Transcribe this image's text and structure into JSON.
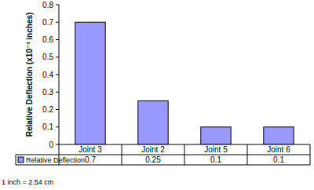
{
  "chart_data": {
    "type": "bar",
    "y_label": "Relative Deflection (x10⁻³ inches)",
    "categories": [
      "Joint 3",
      "Joint 2",
      "Joint 5",
      "Joint 6"
    ],
    "series": [
      {
        "name": "Relative Deflection",
        "color": "#9999ff",
        "values": [
          0.7,
          0.25,
          0.1,
          0.1
        ]
      }
    ],
    "ylim": [
      0,
      0.8
    ],
    "yticks": [
      0,
      0.1,
      0.2,
      0.3,
      0.4,
      0.5,
      0.6,
      0.7,
      0.8
    ],
    "grid": false,
    "annotation": "1 inch = 2.54 cm"
  }
}
